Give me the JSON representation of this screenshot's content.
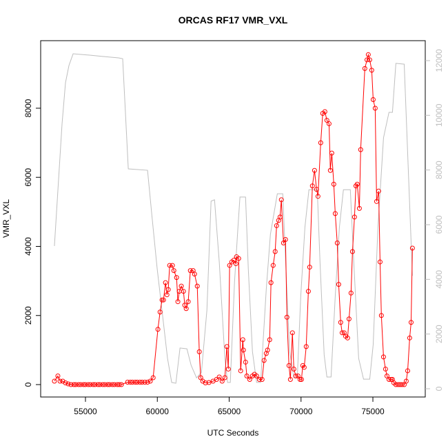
{
  "chart_data": {
    "type": "line",
    "title": "ORCAS RF17 VMR_VXL",
    "xlabel": "UTC Seconds",
    "ylabel": "VMR_VXL",
    "xlim": [
      51883,
      78644
    ],
    "xticks": [
      55000,
      60000,
      65000,
      70000,
      75000
    ],
    "ylim": [
      -359,
      9955
    ],
    "yticks": [
      0,
      2000,
      4000,
      6000,
      8000
    ],
    "y2lim": [
      -302,
      12730
    ],
    "y2ticks": [
      0,
      2000,
      4000,
      6000,
      8000,
      10000,
      12000
    ],
    "y2_color": "#bebebe",
    "series": [
      {
        "color": "#ff0000",
        "marker": "circle",
        "axis": "y",
        "x": [
          52840,
          53080,
          53230,
          53420,
          53610,
          53800,
          53990,
          54190,
          54330,
          54520,
          54670,
          54860,
          55000,
          55190,
          55340,
          55530,
          55670,
          55870,
          56010,
          56200,
          56350,
          56540,
          56680,
          56870,
          57020,
          57210,
          57350,
          57500,
          57930,
          58120,
          58270,
          58460,
          58600,
          58790,
          58940,
          59130,
          59320,
          59510,
          59710,
          60040,
          60190,
          60330,
          60430,
          60570,
          60670,
          60760,
          60860,
          61050,
          61150,
          61340,
          61430,
          61530,
          61670,
          61820,
          61910,
          62010,
          62150,
          62300,
          62490,
          62590,
          62780,
          62920,
          63020,
          63160,
          63350,
          63590,
          63880,
          64120,
          64310,
          64510,
          64700,
          64840,
          64940,
          65030,
          65180,
          65320,
          65470,
          65510,
          65660,
          65800,
          65950,
          65990,
          66140,
          66230,
          66430,
          66620,
          66760,
          66910,
          67100,
          67290,
          67430,
          67580,
          67670,
          67820,
          67910,
          68060,
          68200,
          68300,
          68440,
          68540,
          68630,
          68780,
          68920,
          69020,
          69160,
          69260,
          69400,
          69500,
          69640,
          69790,
          69930,
          70030,
          70120,
          70220,
          70360,
          70510,
          70600,
          70790,
          70940,
          71080,
          71180,
          71370,
          71510,
          71660,
          71800,
          71950,
          72040,
          72140,
          72280,
          72380,
          72520,
          72620,
          72760,
          72860,
          73000,
          73100,
          73240,
          73340,
          73480,
          73580,
          73720,
          73820,
          73910,
          74060,
          74150,
          74440,
          74590,
          74680,
          74780,
          74920,
          75020,
          75160,
          75260,
          75400,
          75500,
          75590,
          75740,
          75880,
          75980,
          76120,
          76270,
          76360,
          76460,
          76600,
          76750,
          76890,
          77030,
          77180,
          77320,
          77420,
          77560,
          77660,
          77750
        ],
        "values": [
          100,
          250,
          100,
          100,
          50,
          20,
          0,
          0,
          0,
          0,
          0,
          0,
          0,
          0,
          0,
          0,
          0,
          0,
          0,
          0,
          0,
          0,
          0,
          0,
          0,
          0,
          0,
          0,
          70,
          70,
          70,
          70,
          70,
          70,
          70,
          70,
          70,
          100,
          200,
          1600,
          2100,
          2450,
          2450,
          2950,
          2600,
          2750,
          3450,
          3450,
          3300,
          3100,
          2400,
          2700,
          2850,
          2700,
          2300,
          2200,
          2400,
          3300,
          3300,
          3200,
          2850,
          950,
          200,
          100,
          50,
          60,
          100,
          150,
          220,
          100,
          200,
          1100,
          450,
          3450,
          3550,
          3600,
          3500,
          3700,
          3650,
          400,
          1300,
          1000,
          650,
          250,
          150,
          250,
          300,
          250,
          150,
          150,
          700,
          900,
          1000,
          1300,
          2950,
          3450,
          3850,
          4600,
          4750,
          4850,
          5350,
          4100,
          4200,
          1950,
          550,
          150,
          1500,
          450,
          250,
          250,
          150,
          150,
          550,
          500,
          1100,
          2700,
          3400,
          5750,
          6200,
          5650,
          5450,
          7000,
          7850,
          7900,
          7650,
          7550,
          6200,
          6700,
          5800,
          4950,
          4100,
          2900,
          1800,
          1500,
          1500,
          1400,
          1350,
          1900,
          2650,
          3850,
          4850,
          5750,
          5800,
          5100,
          6800,
          9150,
          9400,
          9550,
          9400,
          9100,
          8250,
          8000,
          5300,
          5600,
          3550,
          2000,
          800,
          450,
          250,
          150,
          150,
          150,
          50,
          0,
          0,
          0,
          0,
          0,
          100,
          400,
          1350,
          1800,
          3950
        ]
      },
      {
        "color": "#bebebe",
        "axis": "y2",
        "x": [
          52840,
          53130,
          53370,
          53610,
          53850,
          54140,
          55290,
          56250,
          57310,
          57590,
          57980,
          59320,
          59610,
          59990,
          60380,
          60710,
          61000,
          61290,
          61580,
          62060,
          62350,
          62730,
          63070,
          63450,
          63740,
          63980,
          64310,
          64700,
          64890,
          65080,
          65370,
          65610,
          65750,
          66140,
          66330,
          66620,
          66910,
          67190,
          67580,
          67870,
          68350,
          68730,
          68970,
          69210,
          69500,
          69740,
          69980,
          70270,
          70550,
          71130,
          71320,
          71610,
          71800,
          72090,
          72380,
          72670,
          72950,
          73430,
          73670,
          74010,
          74350,
          74780,
          75020,
          75350,
          75740,
          76120,
          76360,
          76600,
          77180,
          77750
        ],
        "values": [
          5220,
          7660,
          9680,
          11190,
          11820,
          12250,
          12200,
          12150,
          12100,
          12070,
          8040,
          7990,
          6400,
          4390,
          2620,
          1110,
          230,
          200,
          1490,
          1460,
          860,
          400,
          600,
          2870,
          6860,
          6910,
          4640,
          1110,
          230,
          230,
          3880,
          5900,
          7010,
          7010,
          4390,
          1360,
          230,
          230,
          3630,
          5650,
          7130,
          7130,
          4130,
          1360,
          400,
          400,
          3380,
          5900,
          7280,
          7280,
          4640,
          1240,
          430,
          430,
          3380,
          5900,
          7280,
          7280,
          4640,
          1110,
          350,
          350,
          1610,
          5900,
          9180,
          10110,
          10110,
          11900,
          11870,
          4130
        ]
      }
    ]
  }
}
